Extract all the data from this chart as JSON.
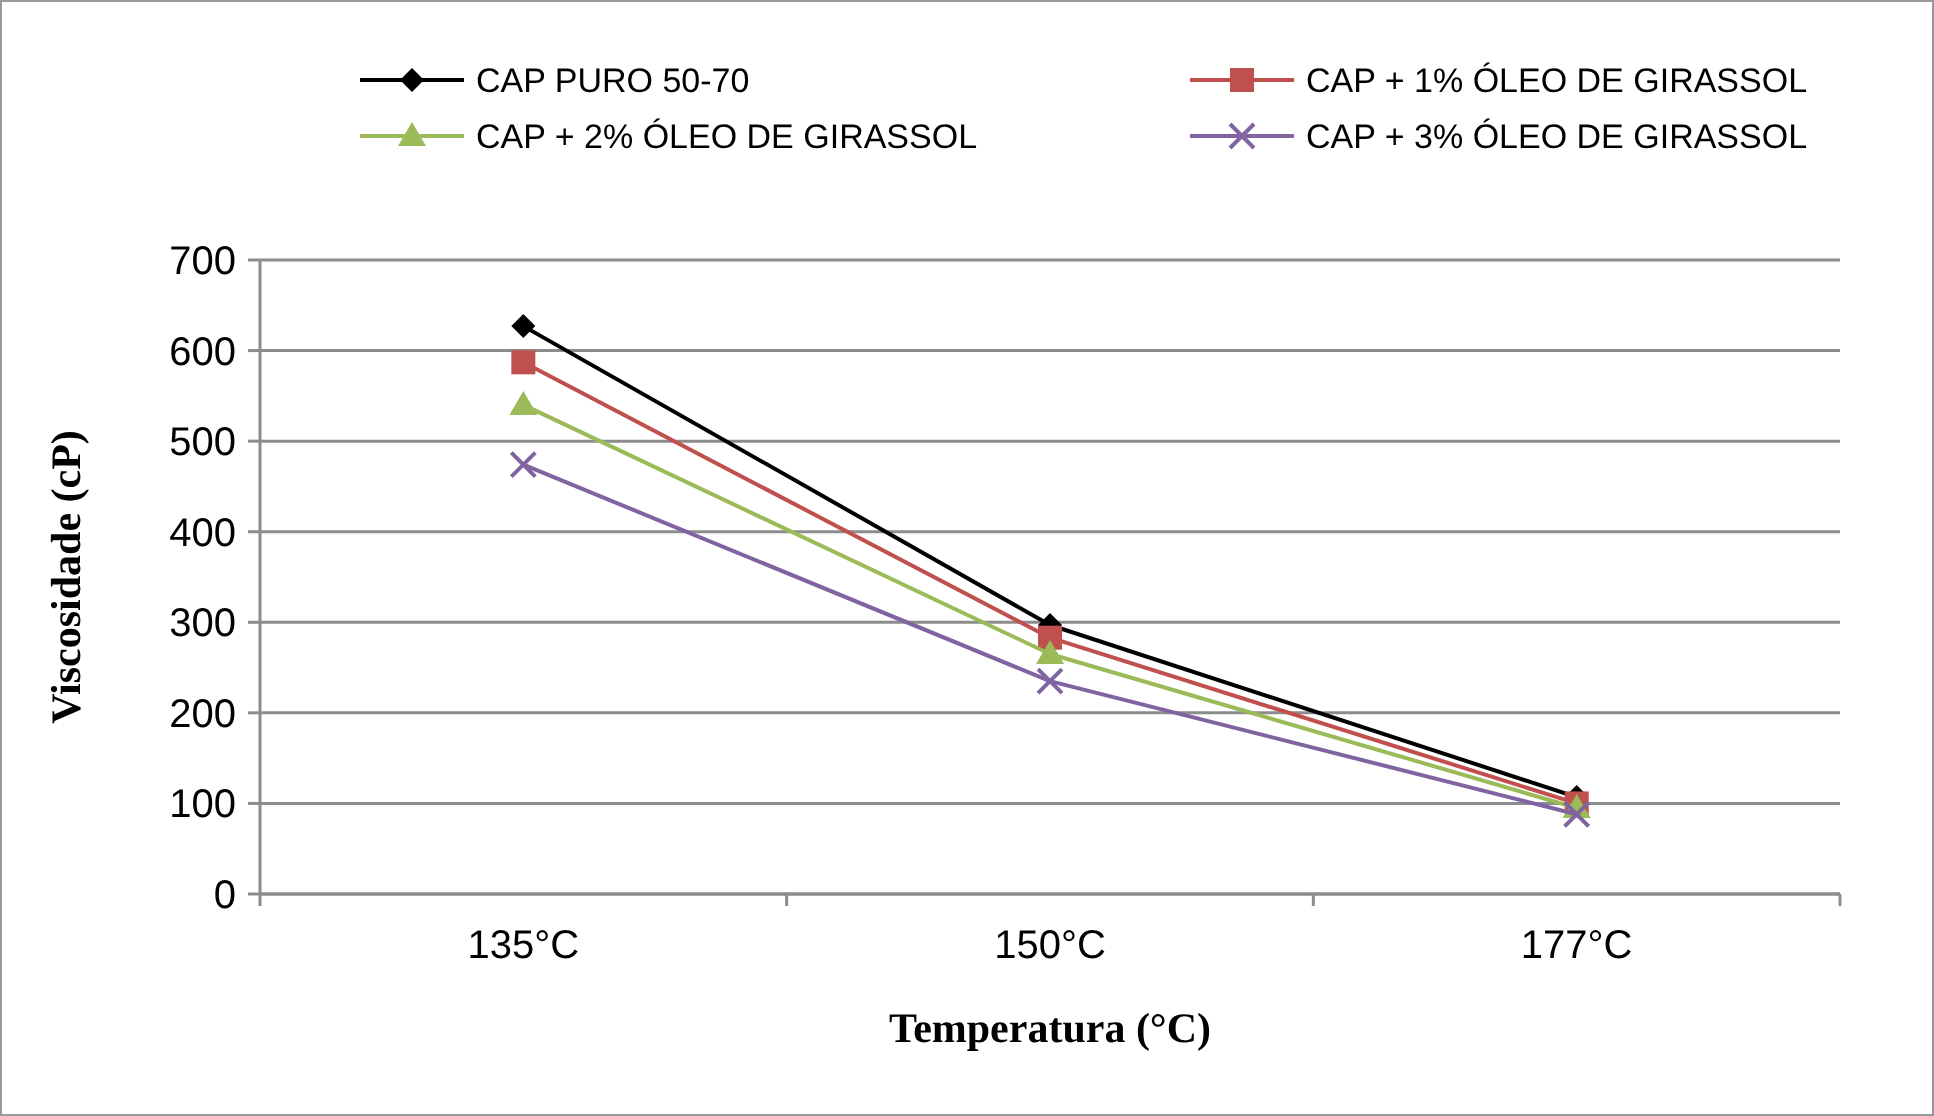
{
  "chart_data": {
    "type": "line",
    "xlabel": "Temperatura (°C)",
    "ylabel": "Viscosidade (cP)",
    "categories": [
      "135°C",
      "150°C",
      "177°C"
    ],
    "ylim": [
      0,
      700
    ],
    "yticks": [
      0,
      100,
      200,
      300,
      400,
      500,
      600,
      700
    ],
    "grid": "y",
    "legend": "top",
    "line_style": "solid",
    "series": [
      {
        "name": "CAP PURO 50-70",
        "color": "#000000",
        "marker": "diamond",
        "values": [
          627,
          297,
          107
        ]
      },
      {
        "name": "CAP + 1% ÓLEO DE GIRASSOL",
        "color": "#c0504d",
        "marker": "square",
        "values": [
          587,
          283,
          100
        ]
      },
      {
        "name": "CAP + 2% ÓLEO DE GIRASSOL",
        "color": "#9bbb59",
        "marker": "triangle",
        "values": [
          540,
          265,
          95
        ]
      },
      {
        "name": "CAP + 3% ÓLEO DE GIRASSOL",
        "color": "#8064a2",
        "marker": "cross",
        "values": [
          474,
          235,
          88
        ]
      }
    ]
  }
}
